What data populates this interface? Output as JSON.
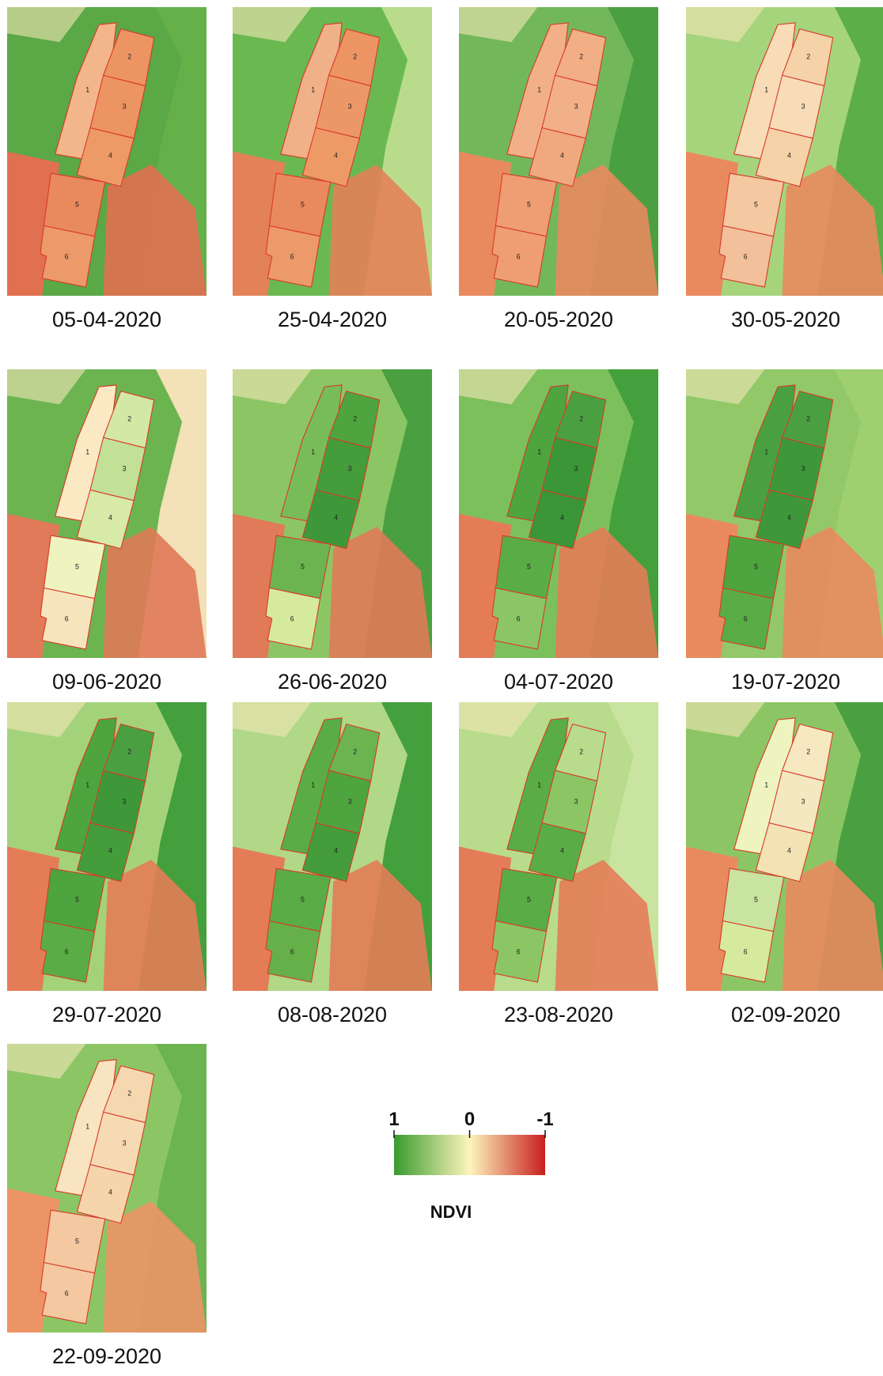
{
  "fields": [
    "1",
    "2",
    "3",
    "4",
    "5",
    "6"
  ],
  "panels": [
    {
      "date": "05-04-2020",
      "field_colors": [
        "#f2b68a",
        "#ec9462",
        "#ec9462",
        "#ee9a66",
        "#e98a5e",
        "#ec9a6a"
      ],
      "surround_colors": [
        "#5aa846",
        "#66b04a",
        "#e07050"
      ]
    },
    {
      "date": "25-04-2020",
      "field_colors": [
        "#f0b088",
        "#ec9462",
        "#ec9866",
        "#ee9a66",
        "#e98a5e",
        "#ec9a6a"
      ],
      "surround_colors": [
        "#6ab850",
        "#b8dc8c",
        "#e38258"
      ]
    },
    {
      "date": "20-05-2020",
      "field_colors": [
        "#f2b088",
        "#f2ae84",
        "#f2b088",
        "#f0a87e",
        "#ee9e72",
        "#ee9e72"
      ],
      "surround_colors": [
        "#72b85a",
        "#4aa040",
        "#e98a5e"
      ]
    },
    {
      "date": "30-05-2020",
      "field_colors": [
        "#f8dcb8",
        "#f6d2a8",
        "#f8dcb8",
        "#f6d2a8",
        "#f4c8a0",
        "#f2c09a"
      ],
      "surround_colors": [
        "#a6d47c",
        "#5cae48",
        "#e98a5e"
      ]
    },
    {
      "date": "09-06-2020",
      "field_colors": [
        "#fbe9c4",
        "#d2e8a4",
        "#c2e096",
        "#d8eaa8",
        "#eef4c0",
        "#f6e4bc"
      ],
      "surround_colors": [
        "#6cb450",
        "#f3e1b8",
        "#e07a58"
      ]
    },
    {
      "date": "26-06-2020",
      "field_colors": [
        "#78bc58",
        "#4ea43e",
        "#449c3a",
        "#3e983a",
        "#6cb450",
        "#d6ea9e"
      ],
      "surround_colors": [
        "#8cc664",
        "#4aa040",
        "#e07a58"
      ]
    },
    {
      "date": "04-07-2020",
      "field_colors": [
        "#4ea43e",
        "#4aa040",
        "#3a9636",
        "#3a9636",
        "#5aac46",
        "#8cc664"
      ],
      "surround_colors": [
        "#7cc05c",
        "#44a03c",
        "#e47c58"
      ]
    },
    {
      "date": "19-07-2020",
      "field_colors": [
        "#4aa040",
        "#4aa040",
        "#3e983a",
        "#3e983a",
        "#4ea43e",
        "#5aac46"
      ],
      "surround_colors": [
        "#92c868",
        "#9ed070",
        "#e98a5e"
      ]
    },
    {
      "date": "29-07-2020",
      "field_colors": [
        "#4ea43e",
        "#4aa040",
        "#3e983a",
        "#449c3a",
        "#4ea43e",
        "#5aac46"
      ],
      "surround_colors": [
        "#a4d27a",
        "#44a03c",
        "#e47c58"
      ]
    },
    {
      "date": "08-08-2020",
      "field_colors": [
        "#5aac46",
        "#6cb450",
        "#4ea43e",
        "#449c3a",
        "#5aac46",
        "#66b04a"
      ],
      "surround_colors": [
        "#b0d886",
        "#44a03c",
        "#e47c58"
      ]
    },
    {
      "date": "23-08-2020",
      "field_colors": [
        "#5aac46",
        "#b8dc8c",
        "#8cc664",
        "#5aac46",
        "#5aac46",
        "#8cc664"
      ],
      "surround_colors": [
        "#b8dc8c",
        "#c8e4a0",
        "#e47c58"
      ]
    },
    {
      "date": "02-09-2020",
      "field_colors": [
        "#eef4c0",
        "#f6e8c0",
        "#f4e8c0",
        "#f2e2b4",
        "#c8e4a0",
        "#d6ea9e"
      ],
      "surround_colors": [
        "#8cc664",
        "#4aa040",
        "#e98a5e"
      ]
    },
    {
      "date": "22-09-2020",
      "field_colors": [
        "#f8e4c0",
        "#f6d8b0",
        "#f6dab4",
        "#f6d4ac",
        "#f4c8a0",
        "#f4c8a0"
      ],
      "surround_colors": [
        "#8cc664",
        "#6cb450",
        "#ec9466"
      ]
    }
  ],
  "legend": {
    "title": "NDVI",
    "lim": [
      1,
      -1
    ],
    "ticks": [
      1,
      0,
      -1
    ],
    "colors": [
      "#3a9a2e",
      "#fdf5bd",
      "#c81e1e"
    ]
  }
}
